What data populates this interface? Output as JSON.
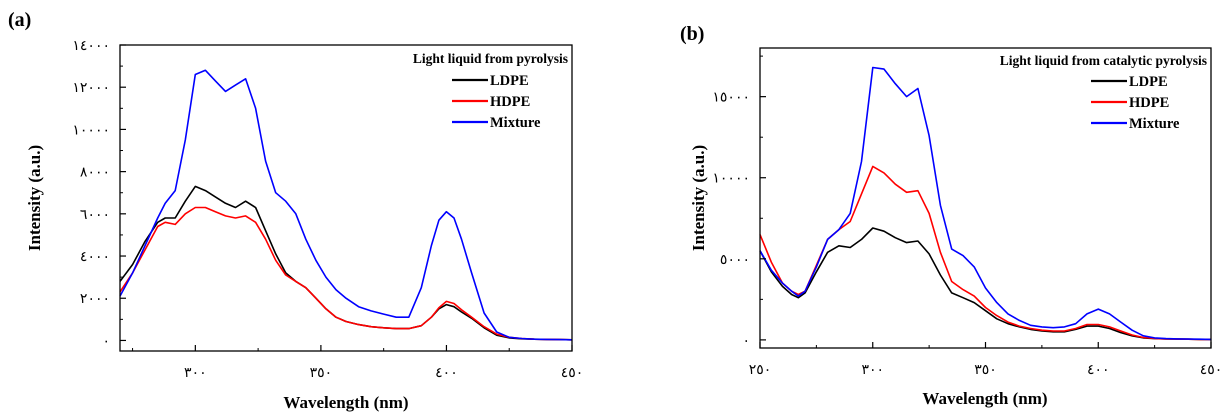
{
  "chart_data": [
    {
      "panel_label": "(a)",
      "type": "line",
      "title": "",
      "legend_title": "Light liquid from pyrolysis",
      "legend_position": "top-right",
      "xlabel": "Wavelength (nm)",
      "ylabel": "Intensity (a.u.)",
      "xlim": [
        270,
        450
      ],
      "ylim": [
        -500,
        14000
      ],
      "x_ticks": [
        300,
        350,
        400,
        450
      ],
      "x_tick_labels": [
        "٣٠٠",
        "٣٥٠",
        "٤٠٠",
        "٤٥٠"
      ],
      "y_ticks": [
        0,
        2000,
        4000,
        6000,
        8000,
        10000,
        12000,
        14000
      ],
      "y_tick_labels": [
        "٠",
        "٢٠٠٠",
        "٤٠٠٠",
        "٦٠٠٠",
        "٨٠٠٠",
        "١٠٠٠٠",
        "١٢٠٠٠",
        "١٤٠٠٠"
      ],
      "grid": false,
      "series": [
        {
          "name": "LDPE",
          "color": "#000000",
          "x": [
            270,
            275,
            280,
            285,
            288,
            292,
            296,
            300,
            304,
            308,
            312,
            316,
            320,
            324,
            328,
            332,
            336,
            340,
            344,
            348,
            352,
            356,
            360,
            365,
            370,
            375,
            380,
            385,
            390,
            394,
            397,
            400,
            403,
            406,
            410,
            415,
            420,
            425,
            430,
            435,
            440,
            445,
            450
          ],
          "y": [
            2800,
            3600,
            4700,
            5600,
            5800,
            5800,
            6600,
            7300,
            7100,
            6800,
            6500,
            6300,
            6600,
            6300,
            5200,
            4100,
            3200,
            2800,
            2500,
            2000,
            1500,
            1100,
            900,
            750,
            650,
            600,
            560,
            560,
            700,
            1100,
            1500,
            1700,
            1600,
            1350,
            1050,
            600,
            250,
            120,
            80,
            60,
            50,
            40,
            30
          ]
        },
        {
          "name": "HDPE",
          "color": "#ff0000",
          "x": [
            270,
            275,
            280,
            285,
            288,
            292,
            296,
            300,
            304,
            308,
            312,
            316,
            320,
            324,
            328,
            332,
            336,
            340,
            344,
            348,
            352,
            356,
            360,
            365,
            370,
            375,
            380,
            385,
            390,
            394,
            397,
            400,
            403,
            406,
            410,
            415,
            420,
            425,
            430,
            435,
            440,
            445,
            450
          ],
          "y": [
            2300,
            3200,
            4300,
            5400,
            5600,
            5500,
            6000,
            6300,
            6300,
            6100,
            5900,
            5800,
            5900,
            5600,
            4800,
            3800,
            3100,
            2800,
            2500,
            2000,
            1500,
            1100,
            900,
            750,
            650,
            600,
            560,
            560,
            700,
            1100,
            1550,
            1850,
            1750,
            1450,
            1100,
            650,
            300,
            150,
            90,
            60,
            50,
            40,
            30
          ]
        },
        {
          "name": "Mixture",
          "color": "#0000ff",
          "x": [
            270,
            275,
            280,
            285,
            288,
            292,
            296,
            300,
            304,
            308,
            312,
            316,
            320,
            324,
            328,
            332,
            336,
            340,
            344,
            348,
            352,
            356,
            360,
            365,
            370,
            375,
            380,
            385,
            390,
            394,
            397,
            400,
            403,
            406,
            410,
            415,
            420,
            425,
            430,
            435,
            440,
            445,
            450
          ],
          "y": [
            2100,
            3200,
            4500,
            5800,
            6500,
            7100,
            9500,
            12600,
            12800,
            12300,
            11800,
            12100,
            12400,
            11000,
            8500,
            7000,
            6600,
            6000,
            4800,
            3800,
            3000,
            2400,
            2000,
            1600,
            1400,
            1250,
            1100,
            1100,
            2500,
            4500,
            5700,
            6100,
            5800,
            4800,
            3200,
            1300,
            400,
            150,
            90,
            60,
            50,
            40,
            30
          ]
        }
      ]
    },
    {
      "panel_label": "(b)",
      "type": "line",
      "title": "",
      "legend_title": "Light liquid from catalytic pyrolysis",
      "legend_position": "top-right",
      "xlabel": "Wavelength (nm)",
      "ylabel": "Intensity (a.u.)",
      "xlim": [
        250,
        450
      ],
      "ylim": [
        -500,
        18000
      ],
      "x_ticks": [
        250,
        300,
        350,
        400,
        450
      ],
      "x_tick_labels": [
        "٢٥٠",
        "٣٠٠",
        "٣٥٠",
        "٤٠٠",
        "٤٥٠"
      ],
      "y_ticks": [
        0,
        5000,
        10000,
        15000
      ],
      "y_tick_labels": [
        "٠",
        "٥٠٠٠",
        "١٠٠٠٠",
        "١٥٠٠٠"
      ],
      "grid": false,
      "series": [
        {
          "name": "LDPE",
          "color": "#000000",
          "x": [
            250,
            255,
            260,
            264,
            267,
            270,
            275,
            280,
            285,
            290,
            295,
            300,
            305,
            310,
            315,
            320,
            325,
            330,
            335,
            340,
            345,
            350,
            355,
            360,
            365,
            370,
            375,
            380,
            385,
            390,
            395,
            400,
            405,
            410,
            415,
            420,
            425,
            430,
            435,
            440,
            445,
            450
          ],
          "y": [
            5500,
            4200,
            3300,
            2800,
            2600,
            2900,
            4200,
            5400,
            5800,
            5700,
            6200,
            6900,
            6700,
            6300,
            6000,
            6100,
            5300,
            4000,
            2900,
            2600,
            2300,
            1800,
            1300,
            1000,
            800,
            650,
            550,
            500,
            500,
            650,
            850,
            850,
            700,
            450,
            250,
            120,
            80,
            60,
            50,
            40,
            30,
            30
          ]
        },
        {
          "name": "HDPE",
          "color": "#ff0000",
          "x": [
            250,
            255,
            260,
            264,
            267,
            270,
            275,
            280,
            285,
            290,
            295,
            300,
            305,
            310,
            315,
            320,
            325,
            330,
            335,
            340,
            345,
            350,
            355,
            360,
            365,
            370,
            375,
            380,
            385,
            390,
            395,
            400,
            405,
            410,
            415,
            420,
            425,
            430,
            435,
            440,
            445,
            450
          ],
          "y": [
            6500,
            4800,
            3500,
            3000,
            2800,
            3000,
            4600,
            6200,
            6800,
            7300,
            9000,
            10700,
            10300,
            9600,
            9100,
            9200,
            7800,
            5400,
            3600,
            3100,
            2700,
            2000,
            1500,
            1100,
            850,
            700,
            600,
            550,
            550,
            700,
            950,
            950,
            800,
            550,
            300,
            150,
            90,
            60,
            50,
            40,
            30,
            30
          ]
        },
        {
          "name": "Mixture",
          "color": "#0000ff",
          "x": [
            250,
            255,
            260,
            264,
            267,
            270,
            275,
            280,
            285,
            290,
            295,
            300,
            305,
            310,
            315,
            320,
            325,
            330,
            335,
            340,
            345,
            350,
            355,
            360,
            365,
            370,
            375,
            380,
            385,
            390,
            395,
            400,
            405,
            410,
            415,
            420,
            425,
            430,
            435,
            440,
            445,
            450
          ],
          "y": [
            5500,
            4300,
            3500,
            3000,
            2700,
            3000,
            4500,
            6200,
            6800,
            7800,
            11000,
            16800,
            16700,
            15800,
            15000,
            15500,
            12600,
            8300,
            5600,
            5200,
            4500,
            3200,
            2300,
            1600,
            1200,
            900,
            800,
            750,
            800,
            1000,
            1600,
            1900,
            1600,
            1100,
            600,
            250,
            120,
            80,
            60,
            50,
            40,
            30
          ]
        }
      ]
    }
  ]
}
